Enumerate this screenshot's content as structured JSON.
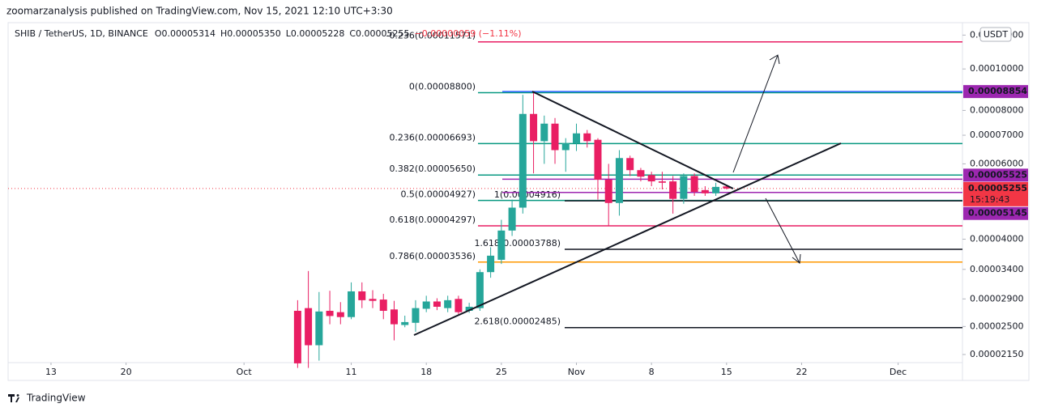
{
  "publisher": "zoomarzanalysis published on TradingView.com, Nov 15, 2021 12:10 UTC+3:30",
  "legend": {
    "symbol": "SHIB / TetherUS, 1D, BINANCE",
    "open": "O0.00005314",
    "high": "H0.00005350",
    "low": "L0.00005228",
    "close": "C0.00005255",
    "change": "−0.00000059 (−1.11%)"
  },
  "footer": "TradingView",
  "chart_data": {
    "type": "candlestick",
    "log_scale": true,
    "currency": "USDT",
    "up_color": "#26a69a",
    "down_color": "#e91e63",
    "x": [
      "2021-10-06",
      "2021-10-07",
      "2021-10-08",
      "2021-10-09",
      "2021-10-10",
      "2021-10-11",
      "2021-10-12",
      "2021-10-13",
      "2021-10-14",
      "2021-10-15",
      "2021-10-16",
      "2021-10-17",
      "2021-10-18",
      "2021-10-19",
      "2021-10-20",
      "2021-10-21",
      "2021-10-22",
      "2021-10-23",
      "2021-10-24",
      "2021-10-25",
      "2021-10-26",
      "2021-10-27",
      "2021-10-28",
      "2021-10-29",
      "2021-10-30",
      "2021-10-31",
      "2021-11-01",
      "2021-11-02",
      "2021-11-03",
      "2021-11-04",
      "2021-11-05",
      "2021-11-06",
      "2021-11-07",
      "2021-11-08",
      "2021-11-09",
      "2021-11-10",
      "2021-11-11",
      "2021-11-12",
      "2021-11-13",
      "2021-11-14",
      "2021-11-15"
    ],
    "open": [
      2.72e-05,
      2.76e-05,
      2.26e-05,
      2.72e-05,
      2.7e-05,
      2.63e-05,
      3.02e-05,
      2.9e-05,
      2.89e-05,
      2.74e-05,
      2.52e-05,
      2.55e-05,
      2.75e-05,
      2.86e-05,
      2.76e-05,
      2.9e-05,
      2.72e-05,
      2.76e-05,
      3.35e-05,
      3.58e-05,
      4.19e-05,
      4.74e-05,
      7.85e-05,
      6.78e-05,
      7.45e-05,
      6.46e-05,
      6.7e-05,
      7.07e-05,
      6.83e-05,
      5.51e-05,
      4.86e-05,
      6.19e-05,
      5.8e-05,
      5.65e-05,
      5.46e-05,
      5.46e-05,
      4.97e-05,
      5.62e-05,
      5.21e-05,
      5.12e-05,
      5.314e-05
    ],
    "high": [
      2.88e-05,
      3.37e-05,
      3.01e-05,
      3.03e-05,
      2.85e-05,
      3.17e-05,
      3.17e-05,
      3.04e-05,
      2.98e-05,
      2.87e-05,
      2.65e-05,
      2.88e-05,
      2.95e-05,
      2.91e-05,
      2.95e-05,
      2.95e-05,
      2.84e-05,
      3.4e-05,
      3.83e-05,
      4.44e-05,
      4.95e-05,
      8.7e-05,
      8.8e-05,
      7.78e-05,
      7.68e-05,
      6.89e-05,
      7.45e-05,
      7.2e-05,
      6.89e-05,
      6e-05,
      6.46e-05,
      6.27e-05,
      5.87e-05,
      5.75e-05,
      5.75e-05,
      5.62e-05,
      5.7e-05,
      5.7e-05,
      5.32e-05,
      5.42e-05,
      5.35e-05
    ],
    "low": [
      2e-05,
      2e-05,
      2.08e-05,
      2.53e-05,
      2.53e-05,
      2.6e-05,
      2.76e-05,
      2.76e-05,
      2.6e-05,
      2.32e-05,
      2.49e-05,
      2.43e-05,
      2.7e-05,
      2.73e-05,
      2.7e-05,
      2.67e-05,
      2.69e-05,
      2.72e-05,
      3.25e-05,
      3.5e-05,
      4.07e-05,
      4.59e-05,
      5.7e-05,
      6e-05,
      6e-05,
      5.75e-05,
      6.43e-05,
      6.55e-05,
      4.95e-05,
      4.29e-05,
      4.54e-05,
      5.62e-05,
      5.46e-05,
      5.32e-05,
      5.23e-05,
      4.59e-05,
      4.84e-05,
      5.05e-05,
      5.05e-05,
      5.05e-05,
      5.228e-05
    ],
    "close": [
      2.05e-05,
      2.26e-05,
      2.71e-05,
      2.645e-05,
      2.63e-05,
      3.02e-05,
      2.88e-05,
      2.87e-05,
      2.72e-05,
      2.53e-05,
      2.56e-05,
      2.76e-05,
      2.86e-05,
      2.78e-05,
      2.88e-05,
      2.7e-05,
      2.78e-05,
      3.35e-05,
      3.66e-05,
      4.19e-05,
      4.74e-05,
      7.85e-05,
      6.78e-05,
      7.45e-05,
      6.46e-05,
      6.7e-05,
      7.07e-05,
      6.78e-05,
      5.51e-05,
      4.86e-05,
      6.19e-05,
      5.8e-05,
      5.6e-05,
      5.46e-05,
      5.42e-05,
      4.97e-05,
      5.62e-05,
      5.16e-05,
      5.12e-05,
      5.3e-05,
      5.255e-05
    ],
    "xlim": [
      "2021-09-09",
      "2021-12-07"
    ],
    "xticks": [
      {
        "value": "2021-09-13",
        "label": "13"
      },
      {
        "value": "2021-09-20",
        "label": "20"
      },
      {
        "value": "2021-10-01",
        "label": "Oct"
      },
      {
        "value": "2021-10-11",
        "label": "11"
      },
      {
        "value": "2021-10-18",
        "label": "18"
      },
      {
        "value": "2021-10-25",
        "label": "25"
      },
      {
        "value": "2021-11-01",
        "label": "Nov"
      },
      {
        "value": "2021-11-08",
        "label": "8"
      },
      {
        "value": "2021-11-15",
        "label": "15"
      },
      {
        "value": "2021-11-22",
        "label": "22"
      },
      {
        "value": "2021-12-01",
        "label": "Dec"
      }
    ],
    "ylim": [
      2.058e-05,
      0.0001283
    ],
    "yticks": [
      {
        "value": 2.15e-05,
        "label": "0.00002150"
      },
      {
        "value": 2.5e-05,
        "label": "0.00002500"
      },
      {
        "value": 2.9e-05,
        "label": "0.00002900"
      },
      {
        "value": 3.4e-05,
        "label": "0.00003400"
      },
      {
        "value": 4e-05,
        "label": "0.00004000"
      },
      {
        "value": 6e-05,
        "label": "0.00006000"
      },
      {
        "value": 7e-05,
        "label": "0.00007000"
      },
      {
        "value": 8e-05,
        "label": "0.00008000"
      },
      {
        "value": 0.0001,
        "label": "0.00010000"
      },
      {
        "value": 0.00012,
        "label": "0.00012000"
      }
    ],
    "fib_retracement": [
      {
        "label": "-0.236(0.00011571)",
        "value": 0.00011571,
        "color": "#e91e63"
      },
      {
        "label": "0(0.00008800)",
        "value": 8.8e-05,
        "color": "#089981"
      },
      {
        "label": "0.236(0.00006693)",
        "value": 6.693e-05,
        "color": "#089981"
      },
      {
        "label": "0.382(0.00005650)",
        "value": 5.65e-05,
        "color": "#089981"
      },
      {
        "label": "0.5(0.00004927)",
        "value": 4.927e-05,
        "color": "#089981"
      },
      {
        "label": "0.618(0.00004297)",
        "value": 4.297e-05,
        "color": "#e91e63"
      },
      {
        "label": "0.786(0.00003536)",
        "value": 3.536e-05,
        "color": "#ff9800"
      }
    ],
    "fib_extension": [
      {
        "label": "1(0.00004916)",
        "value": 4.916e-05,
        "color": "#131722"
      },
      {
        "label": "1.618(0.00003788)",
        "value": 3.788e-05,
        "color": "#131722"
      },
      {
        "label": "2.618(0.00002485)",
        "value": 2.485e-05,
        "color": "#131722"
      }
    ],
    "price_lines": [
      {
        "value": 8.854e-05,
        "color": "#2962ff"
      },
      {
        "value": 5.525e-05,
        "color": "#9c27b0"
      },
      {
        "value": 5.145e-05,
        "color": "#9c27b0"
      }
    ],
    "last_price": {
      "value": 5.255e-05,
      "color": "#f23645",
      "countdown": "15:19:43"
    }
  }
}
